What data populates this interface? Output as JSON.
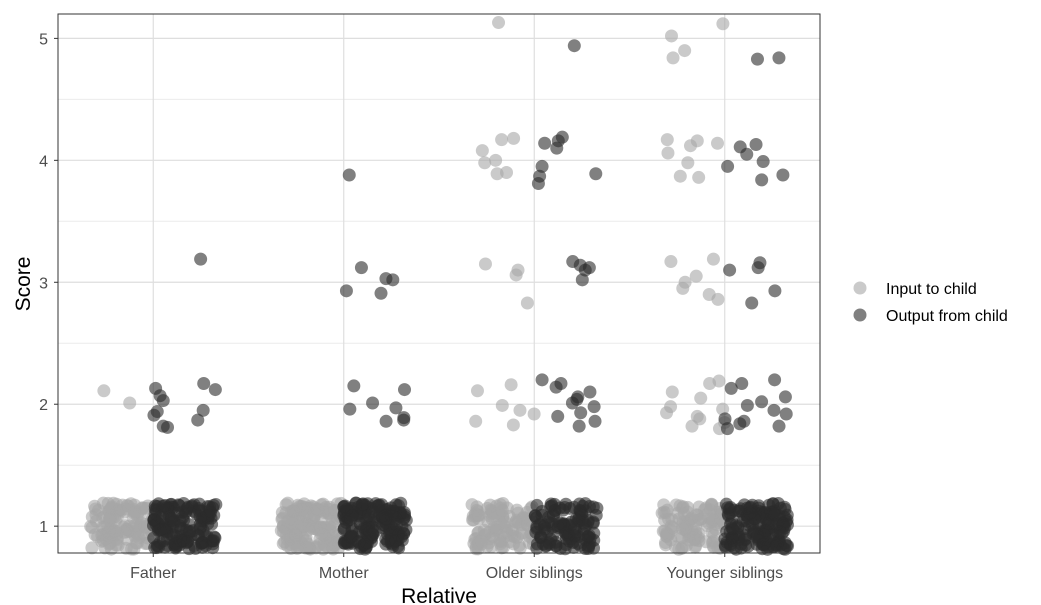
{
  "chart_data": {
    "type": "scatter",
    "title": "",
    "xlabel": "Relative",
    "ylabel": "Score",
    "categories": [
      "Father",
      "Mother",
      "Older siblings",
      "Younger siblings"
    ],
    "ylim": [
      0.78,
      5.2
    ],
    "yticks": [
      "1",
      "2",
      "3",
      "4",
      "5"
    ],
    "grid": true,
    "jitter": "points jittered horizontally and vertically around integer scores",
    "legend": {
      "position": "right"
    },
    "series": [
      {
        "name": "Input to child",
        "color": "#a6a6a6",
        "points": [
          [
            "Father",
            2.01
          ],
          [
            "Father",
            2.11
          ],
          [
            "Mother",
            1.0
          ],
          [
            "Older siblings",
            5.13
          ],
          [
            "Older siblings",
            4.18
          ],
          [
            "Older siblings",
            4.17
          ],
          [
            "Older siblings",
            4.08
          ],
          [
            "Older siblings",
            4.0
          ],
          [
            "Older siblings",
            3.98
          ],
          [
            "Older siblings",
            3.9
          ],
          [
            "Older siblings",
            3.89
          ],
          [
            "Older siblings",
            3.15
          ],
          [
            "Older siblings",
            3.1
          ],
          [
            "Older siblings",
            3.06
          ],
          [
            "Older siblings",
            2.83
          ],
          [
            "Older siblings",
            2.16
          ],
          [
            "Older siblings",
            2.11
          ],
          [
            "Older siblings",
            1.99
          ],
          [
            "Older siblings",
            1.95
          ],
          [
            "Older siblings",
            1.92
          ],
          [
            "Older siblings",
            1.86
          ],
          [
            "Older siblings",
            1.83
          ],
          [
            "Younger siblings",
            5.12
          ],
          [
            "Younger siblings",
            5.02
          ],
          [
            "Younger siblings",
            4.9
          ],
          [
            "Younger siblings",
            4.84
          ],
          [
            "Younger siblings",
            4.17
          ],
          [
            "Younger siblings",
            4.16
          ],
          [
            "Younger siblings",
            4.14
          ],
          [
            "Younger siblings",
            4.12
          ],
          [
            "Younger siblings",
            4.06
          ],
          [
            "Younger siblings",
            3.98
          ],
          [
            "Younger siblings",
            3.87
          ],
          [
            "Younger siblings",
            3.86
          ],
          [
            "Younger siblings",
            3.19
          ],
          [
            "Younger siblings",
            3.17
          ],
          [
            "Younger siblings",
            3.05
          ],
          [
            "Younger siblings",
            3.0
          ],
          [
            "Younger siblings",
            2.95
          ],
          [
            "Younger siblings",
            2.9
          ],
          [
            "Younger siblings",
            2.86
          ],
          [
            "Younger siblings",
            2.19
          ],
          [
            "Younger siblings",
            2.17
          ],
          [
            "Younger siblings",
            2.1
          ],
          [
            "Younger siblings",
            2.05
          ],
          [
            "Younger siblings",
            1.98
          ],
          [
            "Younger siblings",
            1.96
          ],
          [
            "Younger siblings",
            1.93
          ],
          [
            "Younger siblings",
            1.9
          ],
          [
            "Younger siblings",
            1.88
          ],
          [
            "Younger siblings",
            1.85
          ],
          [
            "Younger siblings",
            1.82
          ],
          [
            "Younger siblings",
            1.8
          ]
        ],
        "cluster_at_1": {
          "Father": 120,
          "Mother": 160,
          "Older siblings": 110,
          "Younger siblings": 110
        }
      },
      {
        "name": "Output from child",
        "color": "#2b2b2b",
        "points": [
          [
            "Father",
            3.19
          ],
          [
            "Father",
            2.17
          ],
          [
            "Father",
            2.13
          ],
          [
            "Father",
            2.12
          ],
          [
            "Father",
            2.07
          ],
          [
            "Father",
            2.03
          ],
          [
            "Father",
            1.95
          ],
          [
            "Father",
            1.94
          ],
          [
            "Father",
            1.91
          ],
          [
            "Father",
            1.87
          ],
          [
            "Father",
            1.82
          ],
          [
            "Father",
            1.81
          ],
          [
            "Mother",
            3.88
          ],
          [
            "Mother",
            3.12
          ],
          [
            "Mother",
            3.03
          ],
          [
            "Mother",
            3.02
          ],
          [
            "Mother",
            2.93
          ],
          [
            "Mother",
            2.91
          ],
          [
            "Mother",
            2.15
          ],
          [
            "Mother",
            2.12
          ],
          [
            "Mother",
            2.01
          ],
          [
            "Mother",
            1.97
          ],
          [
            "Mother",
            1.96
          ],
          [
            "Mother",
            1.89
          ],
          [
            "Mother",
            1.87
          ],
          [
            "Mother",
            1.86
          ],
          [
            "Older siblings",
            4.94
          ],
          [
            "Older siblings",
            4.19
          ],
          [
            "Older siblings",
            4.16
          ],
          [
            "Older siblings",
            4.14
          ],
          [
            "Older siblings",
            4.1
          ],
          [
            "Older siblings",
            3.95
          ],
          [
            "Older siblings",
            3.89
          ],
          [
            "Older siblings",
            3.87
          ],
          [
            "Older siblings",
            3.81
          ],
          [
            "Older siblings",
            3.17
          ],
          [
            "Older siblings",
            3.14
          ],
          [
            "Older siblings",
            3.12
          ],
          [
            "Older siblings",
            3.1
          ],
          [
            "Older siblings",
            3.02
          ],
          [
            "Older siblings",
            2.2
          ],
          [
            "Older siblings",
            2.17
          ],
          [
            "Older siblings",
            2.14
          ],
          [
            "Older siblings",
            2.1
          ],
          [
            "Older siblings",
            2.06
          ],
          [
            "Older siblings",
            2.04
          ],
          [
            "Older siblings",
            2.01
          ],
          [
            "Older siblings",
            1.98
          ],
          [
            "Older siblings",
            1.93
          ],
          [
            "Older siblings",
            1.9
          ],
          [
            "Older siblings",
            1.86
          ],
          [
            "Older siblings",
            1.82
          ],
          [
            "Younger siblings",
            4.84
          ],
          [
            "Younger siblings",
            4.83
          ],
          [
            "Younger siblings",
            4.13
          ],
          [
            "Younger siblings",
            4.11
          ],
          [
            "Younger siblings",
            4.05
          ],
          [
            "Younger siblings",
            3.99
          ],
          [
            "Younger siblings",
            3.95
          ],
          [
            "Younger siblings",
            3.88
          ],
          [
            "Younger siblings",
            3.84
          ],
          [
            "Younger siblings",
            3.16
          ],
          [
            "Younger siblings",
            3.12
          ],
          [
            "Younger siblings",
            3.1
          ],
          [
            "Younger siblings",
            2.93
          ],
          [
            "Younger siblings",
            2.83
          ],
          [
            "Younger siblings",
            2.2
          ],
          [
            "Younger siblings",
            2.17
          ],
          [
            "Younger siblings",
            2.13
          ],
          [
            "Younger siblings",
            2.06
          ],
          [
            "Younger siblings",
            2.02
          ],
          [
            "Younger siblings",
            1.99
          ],
          [
            "Younger siblings",
            1.95
          ],
          [
            "Younger siblings",
            1.92
          ],
          [
            "Younger siblings",
            1.88
          ],
          [
            "Younger siblings",
            1.86
          ],
          [
            "Younger siblings",
            1.84
          ],
          [
            "Younger siblings",
            1.82
          ],
          [
            "Younger siblings",
            1.8
          ]
        ],
        "cluster_at_1": {
          "Father": 150,
          "Mother": 170,
          "Older siblings": 120,
          "Younger siblings": 160
        }
      }
    ]
  }
}
